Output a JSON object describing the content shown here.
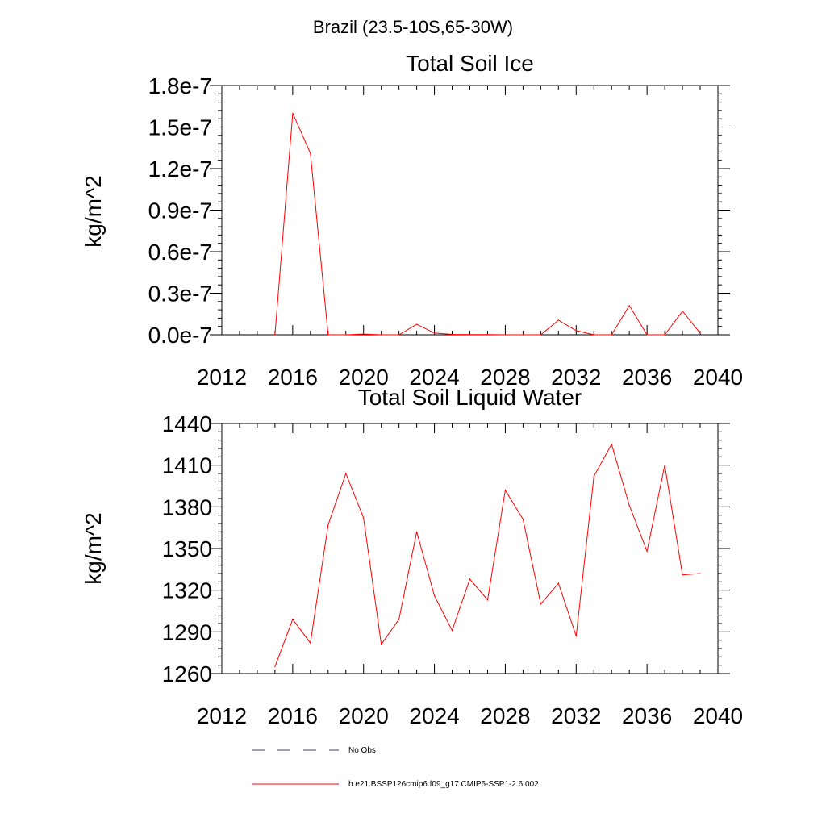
{
  "figure": {
    "title": "Brazil (23.5-10S,65-30W)"
  },
  "legend": {
    "items": [
      {
        "label": "No Obs",
        "style": "dashed",
        "color": "#3c3c78"
      },
      {
        "label": "b.e21.BSSP126cmip6.f09_g17.CMIP6-SSP1-2.6.002",
        "style": "solid",
        "color": "#ff0000"
      }
    ]
  },
  "chart_data": [
    {
      "type": "line",
      "title": "Total Soil Ice",
      "xlabel": "",
      "ylabel": "kg/m^2",
      "xlim": [
        2012,
        2040
      ],
      "ylim": [
        0.0,
        1.8e-07
      ],
      "xticks": [
        2012,
        2016,
        2020,
        2024,
        2028,
        2032,
        2036,
        2040
      ],
      "xtick_labels": [
        "2012",
        "2016",
        "2020",
        "2024",
        "2028",
        "2032",
        "2036",
        "2040"
      ],
      "yticks": [
        0.0,
        3e-08,
        6e-08,
        9e-08,
        1.2e-07,
        1.5e-07,
        1.8e-07
      ],
      "ytick_labels": [
        "0.0e-7",
        "0.3e-7",
        "0.6e-7",
        "0.9e-7",
        "1.2e-7",
        "1.5e-7",
        "1.8e-7"
      ],
      "grid": false,
      "series": [
        {
          "name": "b.e21.BSSP126cmip6.f09_g17.CMIP6-SSP1-2.6.002",
          "color": "#ff0000",
          "x": [
            2015,
            2016,
            2017,
            2018,
            2019,
            2020,
            2021,
            2022,
            2023,
            2024,
            2025,
            2026,
            2027,
            2028,
            2029,
            2030,
            2031,
            2032,
            2033,
            2034,
            2035,
            2036,
            2037,
            2038,
            2039
          ],
          "y": [
            0,
            1.6e-07,
            1.31e-07,
            0,
            0,
            5e-10,
            0,
            0,
            7.5e-09,
            1.2e-09,
            3e-10,
            1e-10,
            1e-10,
            0,
            0,
            0,
            1.05e-08,
            3e-09,
            0,
            0,
            2.1e-08,
            0,
            0,
            1.7e-08,
            1.2e-09
          ]
        }
      ]
    },
    {
      "type": "line",
      "title": "Total Soil Liquid Water",
      "xlabel": "",
      "ylabel": "kg/m^2",
      "xlim": [
        2012,
        2040
      ],
      "ylim": [
        1260,
        1440
      ],
      "xticks": [
        2012,
        2016,
        2020,
        2024,
        2028,
        2032,
        2036,
        2040
      ],
      "xtick_labels": [
        "2012",
        "2016",
        "2020",
        "2024",
        "2028",
        "2032",
        "2036",
        "2040"
      ],
      "yticks": [
        1260,
        1290,
        1320,
        1350,
        1380,
        1410,
        1440
      ],
      "ytick_labels": [
        "1260",
        "1290",
        "1320",
        "1350",
        "1380",
        "1410",
        "1440"
      ],
      "grid": false,
      "series": [
        {
          "name": "b.e21.BSSP126cmip6.f09_g17.CMIP6-SSP1-2.6.002",
          "color": "#ff0000",
          "x": [
            2015,
            2016,
            2017,
            2018,
            2019,
            2020,
            2021,
            2022,
            2023,
            2024,
            2025,
            2026,
            2027,
            2028,
            2029,
            2030,
            2031,
            2032,
            2033,
            2034,
            2035,
            2036,
            2037,
            2038,
            2039
          ],
          "y": [
            1265,
            1299,
            1282,
            1367,
            1404,
            1372,
            1281,
            1299,
            1362,
            1316,
            1291,
            1328,
            1313,
            1392,
            1371,
            1310,
            1325,
            1287,
            1402,
            1425,
            1381,
            1348,
            1410,
            1331,
            1332
          ]
        }
      ]
    }
  ]
}
